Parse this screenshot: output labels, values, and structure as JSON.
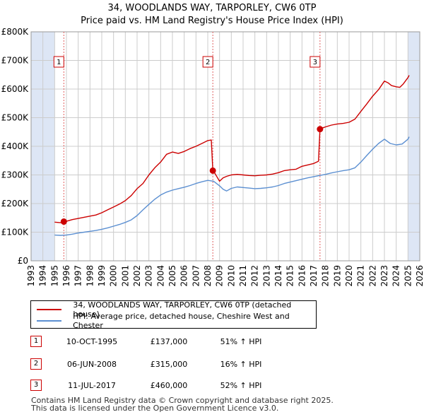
{
  "title": "34, WOODLANDS WAY, TARPORLEY, CW6 0TP",
  "subtitle": "Price paid vs. HM Land Registry's House Price Index (HPI)",
  "colors": {
    "property": "#cc0000",
    "hpi": "#5b8fd1",
    "shade": "#dde6f5",
    "grid": "#cccccc",
    "vline": "#e06060"
  },
  "chart_data": {
    "type": "line",
    "title": "34, WOODLANDS WAY, TARPORLEY, CW6 0TP",
    "xlim": [
      1993,
      2026
    ],
    "ylim": [
      0,
      800000
    ],
    "x_ticks": [
      1993,
      1994,
      1995,
      1996,
      1997,
      1998,
      1999,
      2000,
      2001,
      2002,
      2003,
      2004,
      2005,
      2006,
      2007,
      2008,
      2009,
      2010,
      2011,
      2012,
      2013,
      2014,
      2015,
      2016,
      2017,
      2018,
      2019,
      2020,
      2021,
      2022,
      2023,
      2024,
      2025,
      2026
    ],
    "y_ticks": [
      {
        "value": 0,
        "label": "£0"
      },
      {
        "value": 100000,
        "label": "£100K"
      },
      {
        "value": 200000,
        "label": "£200K"
      },
      {
        "value": 300000,
        "label": "£300K"
      },
      {
        "value": 400000,
        "label": "£400K"
      },
      {
        "value": 500000,
        "label": "£500K"
      },
      {
        "value": 600000,
        "label": "£600K"
      },
      {
        "value": 700000,
        "label": "£700K"
      },
      {
        "value": 800000,
        "label": "£800K"
      }
    ],
    "shaded_ranges": [
      [
        1993,
        1995.0
      ],
      [
        2025.0,
        2026
      ]
    ],
    "series": [
      {
        "name": "34, WOODLANDS WAY, TARPORLEY, CW6 0TP (detached house)",
        "x": [
          1995.0,
          1995.5,
          1995.78,
          1996.0,
          1996.5,
          1997.0,
          1997.5,
          1998.0,
          1998.5,
          1999.0,
          1999.5,
          2000.0,
          2000.5,
          2001.0,
          2001.5,
          2002.0,
          2002.5,
          2003.0,
          2003.5,
          2004.0,
          2004.5,
          2005.0,
          2005.5,
          2006.0,
          2006.5,
          2007.0,
          2007.5,
          2008.0,
          2008.3,
          2008.43,
          2008.6,
          2008.8,
          2009.0,
          2009.3,
          2009.6,
          2010.0,
          2010.5,
          2011.0,
          2011.5,
          2012.0,
          2012.5,
          2013.0,
          2013.5,
          2014.0,
          2014.5,
          2015.0,
          2015.5,
          2016.0,
          2016.5,
          2017.0,
          2017.4,
          2017.53,
          2017.8,
          2018.0,
          2018.5,
          2019.0,
          2019.5,
          2020.0,
          2020.5,
          2021.0,
          2021.5,
          2022.0,
          2022.5,
          2023.0,
          2023.3,
          2023.6,
          2024.0,
          2024.3,
          2024.6,
          2025.0,
          2025.1
        ],
        "y": [
          135000,
          133000,
          137000,
          138000,
          144000,
          148000,
          152000,
          156000,
          160000,
          168000,
          178000,
          188000,
          198000,
          210000,
          228000,
          252000,
          270000,
          300000,
          325000,
          345000,
          372000,
          380000,
          375000,
          382000,
          392000,
          400000,
          410000,
          420000,
          422000,
          315000,
          306000,
          292000,
          278000,
          290000,
          295000,
          300000,
          302000,
          300000,
          298000,
          297000,
          299000,
          300000,
          303000,
          308000,
          315000,
          318000,
          320000,
          330000,
          335000,
          340000,
          348000,
          460000,
          465000,
          468000,
          474000,
          478000,
          480000,
          484000,
          495000,
          522000,
          548000,
          575000,
          598000,
          628000,
          622000,
          612000,
          608000,
          606000,
          618000,
          640000,
          648000
        ]
      },
      {
        "name": "HPI: Average price, detached house, Cheshire West and Chester",
        "x": [
          1995.0,
          1995.5,
          1996.0,
          1996.5,
          1997.0,
          1997.5,
          1998.0,
          1998.5,
          1999.0,
          1999.5,
          2000.0,
          2000.5,
          2001.0,
          2001.5,
          2002.0,
          2002.5,
          2003.0,
          2003.5,
          2004.0,
          2004.5,
          2005.0,
          2005.5,
          2006.0,
          2006.5,
          2007.0,
          2007.5,
          2008.0,
          2008.5,
          2009.0,
          2009.3,
          2009.6,
          2010.0,
          2010.5,
          2011.0,
          2011.5,
          2012.0,
          2012.5,
          2013.0,
          2013.5,
          2014.0,
          2014.5,
          2015.0,
          2015.5,
          2016.0,
          2016.5,
          2017.0,
          2017.5,
          2018.0,
          2018.5,
          2019.0,
          2019.5,
          2020.0,
          2020.5,
          2021.0,
          2021.5,
          2022.0,
          2022.5,
          2023.0,
          2023.5,
          2024.0,
          2024.5,
          2025.0,
          2025.1
        ],
        "y": [
          90000,
          89000,
          90000,
          93000,
          97000,
          100000,
          103000,
          106000,
          110000,
          115000,
          121000,
          127000,
          134000,
          143000,
          158000,
          178000,
          197000,
          215000,
          230000,
          240000,
          247000,
          252000,
          257000,
          263000,
          270000,
          276000,
          281000,
          278000,
          262000,
          250000,
          244000,
          253000,
          258000,
          256000,
          254000,
          252000,
          253000,
          255000,
          258000,
          263000,
          270000,
          275000,
          280000,
          285000,
          290000,
          294000,
          298000,
          302000,
          307000,
          311000,
          315000,
          318000,
          325000,
          345000,
          368000,
          390000,
          410000,
          425000,
          410000,
          405000,
          408000,
          425000,
          433000
        ]
      }
    ],
    "markers": [
      {
        "label": "1",
        "x": 1995.78,
        "y": 137000
      },
      {
        "label": "2",
        "x": 2008.43,
        "y": 315000
      },
      {
        "label": "3",
        "x": 2017.53,
        "y": 460000
      }
    ]
  },
  "legend": {
    "property_label": "34, WOODLANDS WAY, TARPORLEY, CW6 0TP (detached house)",
    "hpi_label": "HPI: Average price, detached house, Cheshire West and Chester"
  },
  "events": [
    {
      "num": "1",
      "date": "10-OCT-1995",
      "price": "£137,000",
      "hpi": "51% ↑ HPI"
    },
    {
      "num": "2",
      "date": "06-JUN-2008",
      "price": "£315,000",
      "hpi": "16% ↑ HPI"
    },
    {
      "num": "3",
      "date": "11-JUL-2017",
      "price": "£460,000",
      "hpi": "52% ↑ HPI"
    }
  ],
  "footer": {
    "line1": "Contains HM Land Registry data © Crown copyright and database right 2025.",
    "line2": "This data is licensed under the Open Government Licence v3.0."
  }
}
